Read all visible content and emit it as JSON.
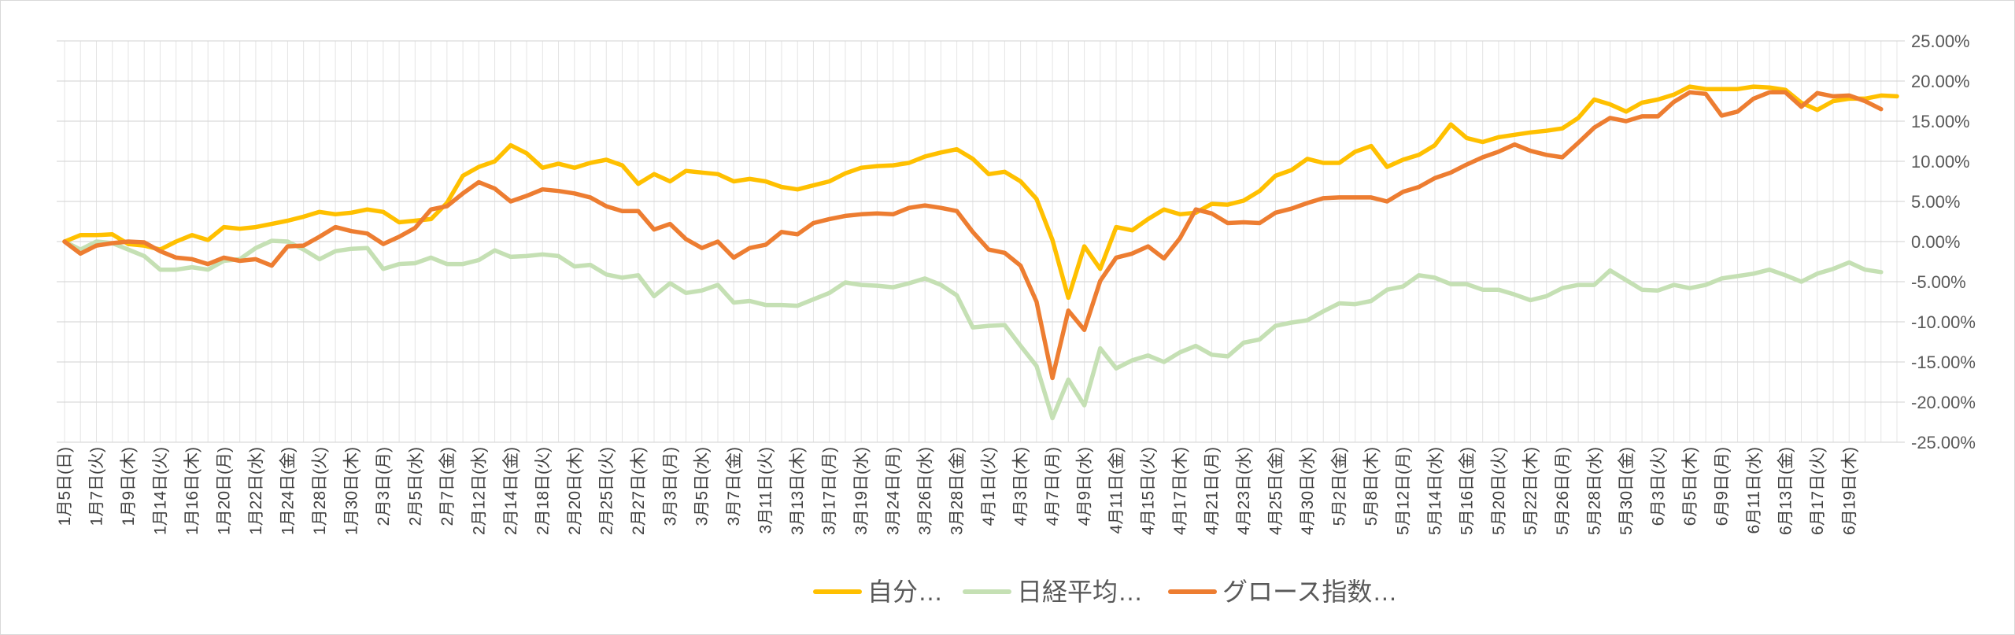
{
  "chart_data": {
    "type": "line",
    "y_axis": {
      "min": -0.25,
      "max": 0.25,
      "step": 0.05,
      "position": "right",
      "tick_labels": [
        "25.00%",
        "20.00%",
        "15.00%",
        "10.00%",
        "5.00%",
        "0.00%",
        "-5.00%",
        "-10.00%",
        "-15.00%",
        "-20.00%",
        "-25.00%"
      ]
    },
    "x_labels": [
      "1月5日(日)",
      "1月7日(火)",
      "1月9日(木)",
      "1月14日(火)",
      "1月16日(木)",
      "1月20日(月)",
      "1月22日(水)",
      "1月24日(金)",
      "1月28日(火)",
      "1月30日(木)",
      "2月3日(月)",
      "2月5日(水)",
      "2月7日(金)",
      "2月12日(水)",
      "2月14日(金)",
      "2月18日(火)",
      "2月20日(木)",
      "2月25日(火)",
      "2月27日(木)",
      "3月3日(月)",
      "3月5日(水)",
      "3月7日(金)",
      "3月11日(火)",
      "3月13日(木)",
      "3月17日(月)",
      "3月19日(水)",
      "3月24日(月)",
      "3月26日(水)",
      "3月28日(金)",
      "4月1日(火)",
      "4月3日(木)",
      "4月7日(月)",
      "4月9日(水)",
      "4月11日(金)",
      "4月15日(火)",
      "4月17日(木)",
      "4月21日(月)",
      "4月23日(水)",
      "4月25日(金)",
      "4月30日(水)",
      "5月2日(金)",
      "5月8日(木)",
      "5月12日(月)",
      "5月14日(水)",
      "5月16日(金)",
      "5月20日(火)",
      "5月22日(木)",
      "5月26日(月)",
      "5月28日(水)",
      "5月30日(金)",
      "6月3日(火)",
      "6月5日(木)",
      "6月9日(月)",
      "6月11日(水)",
      "6月13日(金)",
      "6月17日(火)",
      "6月19日(木)"
    ],
    "grid": true,
    "legend_position": "bottom",
    "series": [
      {
        "name": "自分…",
        "color": "#FFC000",
        "values": [
          0,
          0.8,
          0.8,
          0.9,
          -0.3,
          -0.5,
          -1.0,
          0,
          0.8,
          0.2,
          1.8,
          1.6,
          1.8,
          2.2,
          2.6,
          3.1,
          3.7,
          3.4,
          3.6,
          4.0,
          3.7,
          2.4,
          2.6,
          2.8,
          4.8,
          8.2,
          9.3,
          10.0,
          12.0,
          11.0,
          9.2,
          9.7,
          9.2,
          9.8,
          10.2,
          9.5,
          7.2,
          8.4,
          7.5,
          8.8,
          8.6,
          8.4,
          7.5,
          7.8,
          7.5,
          6.8,
          6.5,
          7.0,
          7.5,
          8.5,
          9.2,
          9.4,
          9.5,
          9.8,
          10.6,
          11.1,
          11.5,
          10.3,
          8.4,
          8.7,
          7.5,
          5.3,
          0.2,
          -7.0,
          -0.6,
          -3.4,
          1.8,
          1.4,
          2.8,
          4.0,
          3.4,
          3.6,
          4.7,
          4.6,
          5.1,
          6.3,
          8.2,
          8.9,
          10.3,
          9.8,
          9.8,
          11.2,
          11.9,
          9.3,
          10.2,
          10.8,
          12.0,
          14.6,
          12.9,
          12.4,
          13.0,
          13.3,
          13.6,
          13.8,
          14.1,
          15.4,
          17.7,
          17.1,
          16.2,
          17.3,
          17.7,
          18.3,
          19.3,
          19.0,
          19.0,
          19.0,
          19.3,
          19.2,
          18.9,
          17.3,
          16.4,
          17.5,
          17.8,
          17.8,
          18.2,
          18.1
        ]
      },
      {
        "name": "日経平均…",
        "color": "#C5E0B4",
        "values": [
          0,
          -1.0,
          0,
          -0.2,
          -1.0,
          -1.8,
          -3.5,
          -3.5,
          -3.2,
          -3.5,
          -2.4,
          -2.2,
          -0.8,
          0.1,
          0,
          -1.0,
          -2.2,
          -1.2,
          -0.9,
          -0.8,
          -3.4,
          -2.8,
          -2.7,
          -2.0,
          -2.8,
          -2.8,
          -2.3,
          -1.1,
          -1.9,
          -1.8,
          -1.6,
          -1.8,
          -3.1,
          -2.9,
          -4.1,
          -4.5,
          -4.2,
          -6.8,
          -5.2,
          -6.4,
          -6.1,
          -5.4,
          -7.6,
          -7.4,
          -7.9,
          -7.9,
          -8.0,
          -7.2,
          -6.4,
          -5.1,
          -5.4,
          -5.5,
          -5.7,
          -5.2,
          -4.6,
          -5.4,
          -6.7,
          -10.7,
          -10.5,
          -10.4,
          -13.0,
          -15.5,
          -22.0,
          -17.2,
          -20.4,
          -13.3,
          -15.8,
          -14.8,
          -14.2,
          -15.0,
          -13.8,
          -13.0,
          -14.1,
          -14.3,
          -12.6,
          -12.2,
          -10.5,
          -10.1,
          -9.8,
          -8.7,
          -7.7,
          -7.8,
          -7.4,
          -6.0,
          -5.6,
          -4.2,
          -4.5,
          -5.3,
          -5.3,
          -6.0,
          -6.0,
          -6.6,
          -7.3,
          -6.8,
          -5.8,
          -5.4,
          -5.4,
          -3.6,
          -4.8,
          -6.0,
          -6.1,
          -5.4,
          -5.8,
          -5.4,
          -4.6,
          -4.3,
          -4.0,
          -3.5,
          -4.2,
          -5.0,
          -4.0,
          -3.4,
          -2.6,
          -3.5,
          -3.8
        ]
      },
      {
        "name": "グロース指数…",
        "color": "#ED7D31",
        "values": [
          0,
          -1.5,
          -0.5,
          -0.2,
          0,
          -0.1,
          -1.2,
          -2.0,
          -2.2,
          -2.8,
          -2.0,
          -2.4,
          -2.2,
          -3.0,
          -0.6,
          -0.5,
          0.6,
          1.8,
          1.3,
          1.0,
          -0.3,
          0.6,
          1.7,
          4.0,
          4.4,
          6.0,
          7.4,
          6.6,
          5.0,
          5.7,
          6.5,
          6.3,
          6.0,
          5.5,
          4.4,
          3.8,
          3.8,
          1.5,
          2.2,
          0.3,
          -0.8,
          0,
          -2.0,
          -0.8,
          -0.4,
          1.2,
          0.9,
          2.3,
          2.8,
          3.2,
          3.4,
          3.5,
          3.4,
          4.2,
          4.5,
          4.2,
          3.8,
          1.2,
          -1.0,
          -1.4,
          -3.0,
          -7.5,
          -17.0,
          -8.6,
          -11.0,
          -4.9,
          -2.0,
          -1.5,
          -0.6,
          -2.1,
          0.4,
          4.0,
          3.5,
          2.3,
          2.4,
          2.3,
          3.6,
          4.1,
          4.8,
          5.4,
          5.5,
          5.5,
          5.5,
          5.0,
          6.2,
          6.8,
          7.9,
          8.6,
          9.6,
          10.5,
          11.2,
          12.1,
          11.3,
          10.8,
          10.5,
          12.3,
          14.2,
          15.4,
          15.0,
          15.6,
          15.6,
          17.4,
          18.6,
          18.4,
          15.7,
          16.2,
          17.8,
          18.6,
          18.6,
          16.8,
          18.5,
          18.1,
          18.2,
          17.5,
          16.5
        ]
      }
    ]
  }
}
